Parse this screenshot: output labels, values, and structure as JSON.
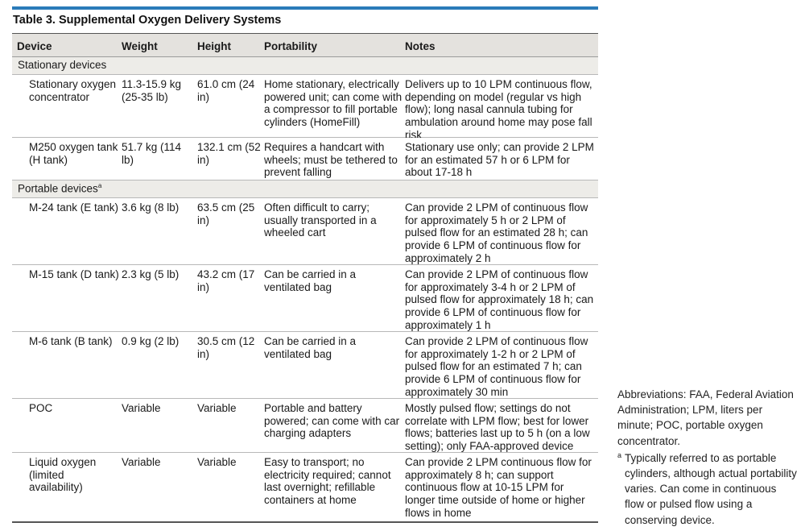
{
  "title": "Table 3. Supplemental Oxygen Delivery Systems",
  "columns": [
    "Device",
    "Weight",
    "Height",
    "Portability",
    "Notes"
  ],
  "sections": [
    {
      "label": "Stationary devices",
      "rows": [
        {
          "device": "Stationary oxygen concentrator",
          "weight": "11.3-15.9 kg (25-35 lb)",
          "height": "61.0 cm (24 in)",
          "portability": "Home stationary, electrically powered unit; can come with a compressor to fill portable cylinders (HomeFill)",
          "notes": "Delivers up to 10 LPM continuous flow, depending on model (regular vs high flow); long nasal cannula tubing for ambulation around home may pose fall risk"
        },
        {
          "device": "M250 oxygen tank (H tank)",
          "weight": "51.7 kg (114 lb)",
          "height": "132.1 cm (52 in)",
          "portability": "Requires a handcart with wheels; must be tethered to prevent falling",
          "notes": "Stationary use only; can provide 2 LPM for an estimated 57 h or 6 LPM for about 17-18 h"
        }
      ]
    },
    {
      "label": "Portable devices",
      "footnote_marker": "a",
      "rows": [
        {
          "device": "M-24 tank (E tank)",
          "weight": "3.6 kg (8 lb)",
          "height": "63.5 cm (25 in)",
          "portability": "Often difficult to carry; usually transported in a wheeled cart",
          "notes": "Can provide 2 LPM of continuous flow for approximately 5 h or 2 LPM of pulsed flow for an estimated 28 h; can provide 6 LPM of continuous flow for approximately 2 h"
        },
        {
          "device": "M-15 tank (D tank)",
          "weight": "2.3 kg (5 lb)",
          "height": "43.2 cm (17 in)",
          "portability": "Can be carried in a ventilated bag",
          "notes": "Can provide 2 LPM of continuous flow for approximately 3-4 h or 2 LPM of pulsed flow for approximately 18 h; can provide 6 LPM of continuous flow for approximately 1 h"
        },
        {
          "device": "M-6 tank (B tank)",
          "weight": "0.9 kg (2 lb)",
          "height": "30.5 cm (12 in)",
          "portability": "Can be carried in a ventilated bag",
          "notes": "Can provide 2 LPM of continuous flow for approximately 1-2 h or 2 LPM of pulsed flow for an estimated 7 h; can provide 6 LPM of continuous flow for approximately 30 min"
        },
        {
          "device": "POC",
          "weight": "Variable",
          "height": "Variable",
          "portability": "Portable and battery powered; can come with car charging adapters",
          "notes": "Mostly pulsed flow; settings do not correlate with LPM flow; best for lower flows; batteries last up to 5 h (on a low setting); only FAA-approved device"
        },
        {
          "device": "Liquid oxygen (limited availability)",
          "weight": "Variable",
          "height": "Variable",
          "portability": "Easy to transport; no electricity required; cannot last overnight; refillable containers at home",
          "notes": "Can provide 2 LPM continuous flow for approximately 8 h; can support continuous flow at 10-15 LPM for longer time outside of home or higher flows in home"
        }
      ]
    }
  ],
  "abbreviations": "Abbreviations: FAA, Federal Aviation Administration; LPM, liters per minute; POC, portable oxygen concentrator.",
  "footnote": {
    "marker": "a",
    "text": "Typically referred to as portable cylinders, although actual portability varies. Can come in continuous flow or pulsed flow using a conserving device."
  }
}
